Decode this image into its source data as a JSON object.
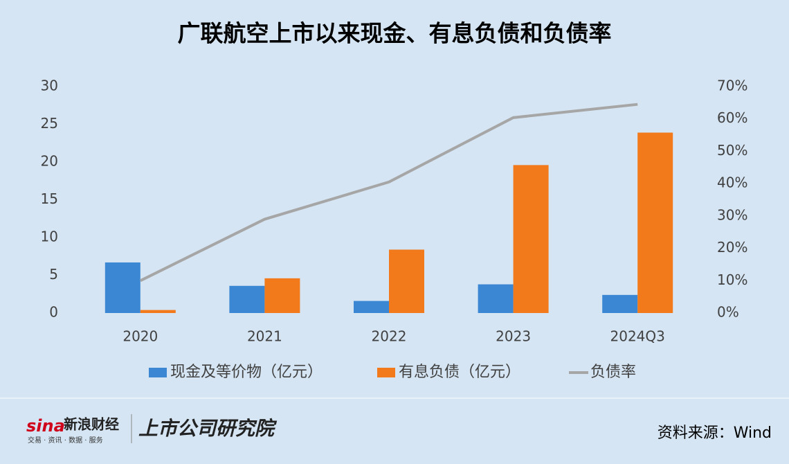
{
  "chart_data": {
    "type": "bar-line",
    "title": "广联航空上市以来现金、有息负债和负债率",
    "categories": [
      "2020",
      "2021",
      "2022",
      "2023",
      "2024Q3"
    ],
    "series": [
      {
        "name": "现金及等价物（亿元）",
        "type": "bar",
        "color": "#3b87d3",
        "values": [
          6.7,
          3.6,
          1.6,
          3.8,
          2.4
        ]
      },
      {
        "name": "有息负债（亿元）",
        "type": "bar",
        "color": "#f27a1a",
        "values": [
          0.4,
          4.6,
          8.4,
          19.6,
          23.9
        ]
      },
      {
        "name": "负债率",
        "type": "line",
        "axis": "y2",
        "color": "#a6a6a6",
        "values": [
          10,
          29,
          40.5,
          60.4,
          64.5
        ]
      }
    ],
    "ylim": [
      0,
      30
    ],
    "yticks": [
      0,
      5,
      10,
      15,
      20,
      25,
      30
    ],
    "y2lim": [
      0,
      70
    ],
    "y2ticks": [
      {
        "value": 0,
        "label": "0%"
      },
      {
        "value": 10,
        "label": "10%"
      },
      {
        "value": 20,
        "label": "20%"
      },
      {
        "value": 30,
        "label": "30%"
      },
      {
        "value": 40,
        "label": "40%"
      },
      {
        "value": 50,
        "label": "50%"
      },
      {
        "value": 60,
        "label": "60%"
      },
      {
        "value": 70,
        "label": "70%"
      }
    ],
    "grid": false,
    "legend": "bottom"
  },
  "footer": {
    "logo": "sina",
    "brand": "新浪财经",
    "tagline": "交易 · 资讯 · 数据 · 服务",
    "institute": "上市公司研究院",
    "source": "资料来源：Wind"
  }
}
